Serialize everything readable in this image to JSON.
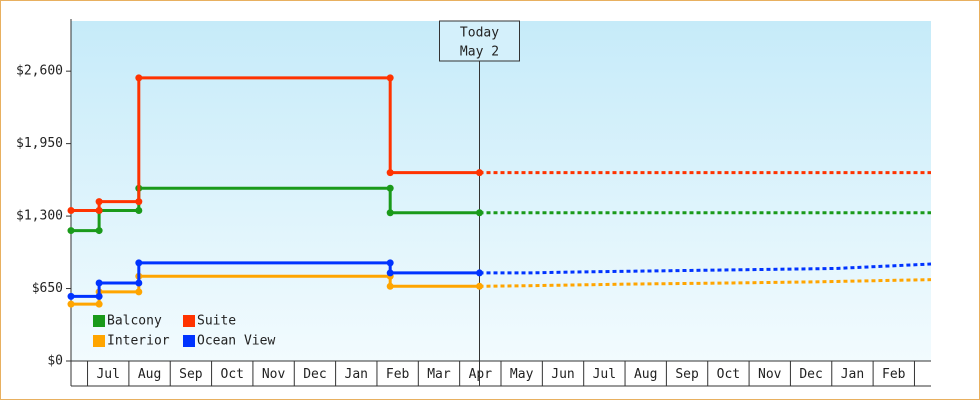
{
  "chart_data": {
    "type": "step-line",
    "xlim": [
      0.5,
      21.3
    ],
    "ylim": [
      0,
      3050
    ],
    "yticks": [
      {
        "value": 0,
        "label": "$0"
      },
      {
        "value": 650,
        "label": "$650"
      },
      {
        "value": 1300,
        "label": "$1,300"
      },
      {
        "value": 1950,
        "label": "$1,950"
      },
      {
        "value": 2600,
        "label": "$2,600"
      }
    ],
    "xticks": [
      {
        "value": 1.4,
        "label": "Jul"
      },
      {
        "value": 2.4,
        "label": "Aug"
      },
      {
        "value": 3.4,
        "label": "Sep"
      },
      {
        "value": 4.4,
        "label": "Oct"
      },
      {
        "value": 5.4,
        "label": "Nov"
      },
      {
        "value": 6.4,
        "label": "Dec"
      },
      {
        "value": 7.4,
        "label": "Jan"
      },
      {
        "value": 8.4,
        "label": "Feb"
      },
      {
        "value": 9.4,
        "label": "Mar"
      },
      {
        "value": 10.4,
        "label": "Apr"
      },
      {
        "value": 11.4,
        "label": "May"
      },
      {
        "value": 12.4,
        "label": "Jun"
      },
      {
        "value": 13.4,
        "label": "Jul"
      },
      {
        "value": 14.4,
        "label": "Aug"
      },
      {
        "value": 15.4,
        "label": "Sep"
      },
      {
        "value": 16.4,
        "label": "Oct"
      },
      {
        "value": 17.4,
        "label": "Nov"
      },
      {
        "value": 18.4,
        "label": "Dec"
      },
      {
        "value": 19.4,
        "label": "Jan"
      },
      {
        "value": 20.4,
        "label": "Feb"
      }
    ],
    "today": {
      "x": 10.38,
      "label": "Today",
      "date": "May 2"
    },
    "legend": "lower left",
    "series": [
      {
        "name": "Balcony",
        "color": "#1a9a1a",
        "x": [
          0.5,
          1.18,
          1.18,
          2.14,
          2.14,
          8.22,
          8.22,
          10.38
        ],
        "values": [
          1170,
          1170,
          1350,
          1350,
          1550,
          1550,
          1330,
          1330
        ],
        "projection": {
          "x": [
            10.38,
            21.3
          ],
          "values": [
            1330,
            1330
          ]
        }
      },
      {
        "name": "Suite",
        "color": "#ff3300",
        "x": [
          0.5,
          1.18,
          1.18,
          2.14,
          2.14,
          8.22,
          8.22,
          10.38
        ],
        "values": [
          1350,
          1350,
          1430,
          1430,
          2540,
          2540,
          1690,
          1690
        ],
        "projection": {
          "x": [
            10.38,
            21.3
          ],
          "values": [
            1690,
            1690
          ]
        }
      },
      {
        "name": "Interior",
        "color": "#ffa500",
        "x": [
          0.5,
          1.18,
          1.18,
          2.14,
          2.14,
          8.22,
          8.22,
          10.38
        ],
        "values": [
          510,
          510,
          620,
          620,
          760,
          760,
          670,
          670
        ],
        "projection": {
          "x": [
            10.38,
            11.5,
            14,
            16.5,
            18.5,
            21.3
          ],
          "values": [
            670,
            675,
            690,
            700,
            710,
            730
          ]
        }
      },
      {
        "name": "Ocean View",
        "color": "#0033ff",
        "x": [
          0.5,
          1.18,
          1.18,
          2.14,
          2.14,
          8.22,
          8.22,
          10.38
        ],
        "values": [
          580,
          580,
          700,
          700,
          880,
          880,
          790,
          790
        ],
        "projection": {
          "x": [
            10.38,
            11.5,
            13,
            15,
            17,
            19,
            21.3
          ],
          "values": [
            790,
            790,
            800,
            810,
            820,
            830,
            870
          ]
        }
      }
    ]
  }
}
